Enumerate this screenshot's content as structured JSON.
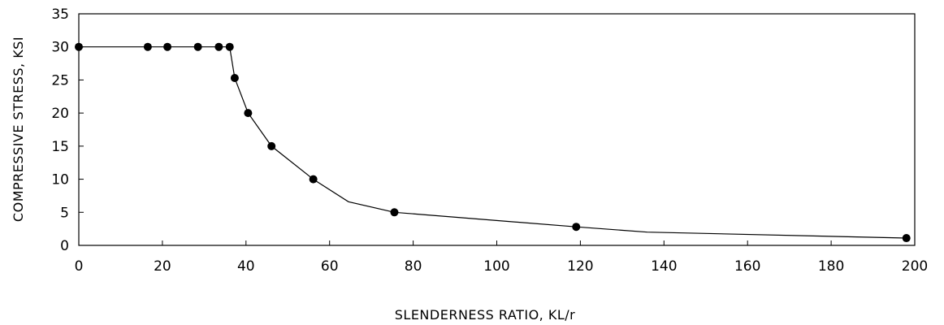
{
  "chart_data": {
    "type": "line",
    "title": "",
    "xlabel": "SLENDERNESS RATIO, KL/r",
    "ylabel": "COMPRESSIVE STRESS, KSI",
    "xlim": [
      0,
      200
    ],
    "ylim": [
      0,
      35
    ],
    "x_ticks": [
      0,
      20,
      40,
      60,
      80,
      100,
      120,
      140,
      160,
      180,
      200
    ],
    "y_ticks": [
      0,
      5,
      10,
      15,
      20,
      25,
      30,
      35
    ],
    "grid": false,
    "legend": "none",
    "series": [
      {
        "line_points": [
          {
            "x": 0,
            "y": 30
          },
          {
            "x": 16.5,
            "y": 30
          },
          {
            "x": 21.2,
            "y": 30
          },
          {
            "x": 28.5,
            "y": 30
          },
          {
            "x": 33.5,
            "y": 30
          },
          {
            "x": 36.1,
            "y": 30
          },
          {
            "x": 37.3,
            "y": 25.3
          },
          {
            "x": 40.5,
            "y": 20
          },
          {
            "x": 46.1,
            "y": 15
          },
          {
            "x": 56.1,
            "y": 10
          },
          {
            "x": 64.5,
            "y": 6.6
          },
          {
            "x": 75.5,
            "y": 5
          },
          {
            "x": 119,
            "y": 2.8
          },
          {
            "x": 136,
            "y": 2
          },
          {
            "x": 198,
            "y": 1.1
          }
        ],
        "markers": [
          {
            "x": 0,
            "y": 30
          },
          {
            "x": 16.5,
            "y": 30
          },
          {
            "x": 21.2,
            "y": 30
          },
          {
            "x": 28.5,
            "y": 30
          },
          {
            "x": 33.5,
            "y": 30
          },
          {
            "x": 36.1,
            "y": 30
          },
          {
            "x": 37.3,
            "y": 25.3
          },
          {
            "x": 40.5,
            "y": 20
          },
          {
            "x": 46.1,
            "y": 15
          },
          {
            "x": 56.1,
            "y": 10
          },
          {
            "x": 75.5,
            "y": 5
          },
          {
            "x": 119,
            "y": 2.8
          },
          {
            "x": 198,
            "y": 1.1
          }
        ],
        "color": "#000000"
      }
    ]
  }
}
